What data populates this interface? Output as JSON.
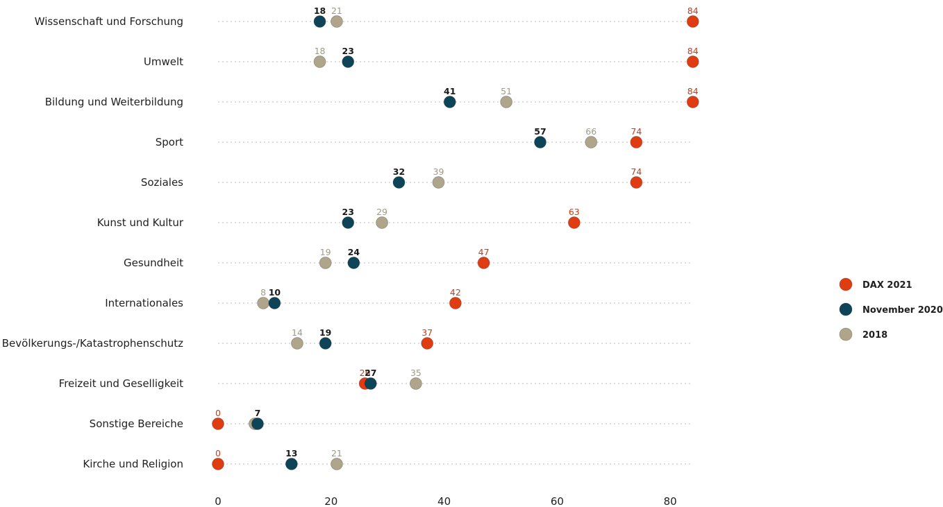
{
  "chart_data": {
    "type": "scatter",
    "categories": [
      "Wissenschaft und Forschung",
      "Umwelt",
      "Bildung und Weiterbildung",
      "Sport",
      "Soziales",
      "Kunst und Kultur",
      "Gesundheit",
      "Internationales",
      "Bevölkerungs-/Katastrophenschutz",
      "Freizeit und Geselligkeit",
      "Sonstige Bereiche",
      "Kirche und Religion"
    ],
    "series": [
      {
        "name": "DAX 2021",
        "color": "#e03c12",
        "label_color": "#cc3a16",
        "values": [
          84,
          84,
          84,
          74,
          74,
          63,
          47,
          42,
          37,
          26,
          0,
          0
        ],
        "labels": [
          "84",
          "84",
          "84",
          "74",
          "74",
          "63",
          "47",
          "42",
          "37",
          "26",
          "0",
          "0"
        ]
      },
      {
        "name": "November 2020",
        "color": "#0e4458",
        "label_color": "#1a1a1a",
        "values": [
          18,
          23,
          41,
          57,
          32,
          23,
          24,
          10,
          19,
          27,
          7,
          13
        ],
        "labels": [
          "18",
          "23",
          "41",
          "57",
          "32",
          "23",
          "24",
          "10",
          "19",
          "27",
          "7",
          "13"
        ]
      },
      {
        "name": "2018",
        "color": "#aea58a",
        "label_color": "#a09a84",
        "values": [
          21,
          18,
          51,
          66,
          39,
          29,
          19,
          8,
          14,
          35,
          6.5,
          21
        ],
        "labels": [
          "21",
          "18",
          "51",
          "66",
          "39",
          "29",
          "19",
          "8",
          "14",
          "35",
          "",
          "21"
        ]
      }
    ],
    "xticks": [
      0,
      20,
      40,
      60,
      80
    ],
    "tick_labels": [
      "0",
      "20",
      "40",
      "60",
      "80"
    ],
    "xlim": [
      0,
      84
    ],
    "grid": "dotted horizontal line per category",
    "legend": {
      "position": "right",
      "entries": [
        "DAX 2021",
        "November 2020",
        "2018"
      ]
    }
  }
}
